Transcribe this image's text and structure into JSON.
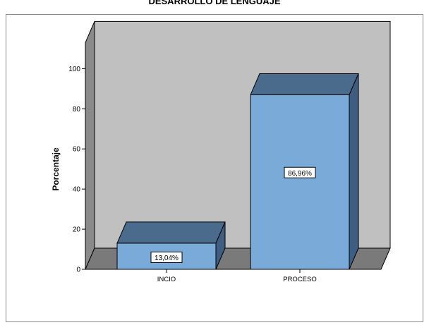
{
  "chart_data": {
    "type": "bar",
    "title": "DESARROLLO DE LENGUAJE",
    "xlabel": "",
    "ylabel": "Porcentaje",
    "categories": [
      "INCIO",
      "PROCESO"
    ],
    "values": [
      13.04,
      86.96
    ],
    "data_labels": [
      "13,04%",
      "86,96%"
    ],
    "yticks": [
      0,
      20,
      40,
      60,
      80,
      100
    ],
    "ylim": [
      0,
      113
    ],
    "grid": false,
    "style": "3d",
    "colors": {
      "bar_front": "#7aaad8",
      "bar_top": "#4a6b8c",
      "bar_side": "#3e5d80",
      "back_wall": "#c0c0c0",
      "side_wall": "#8a8a8a",
      "floor": "#7a7a7a"
    }
  }
}
